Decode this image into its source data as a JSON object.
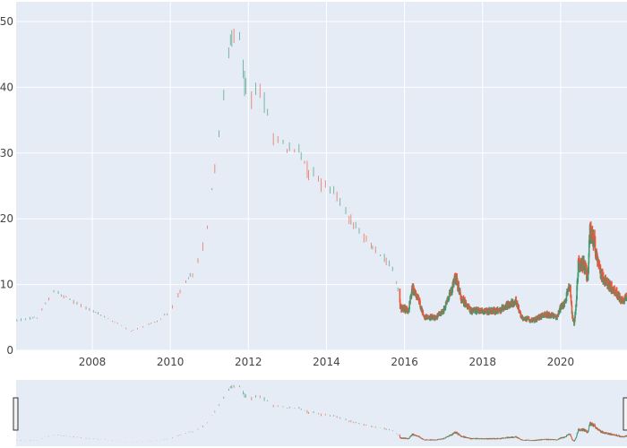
{
  "chart_data": {
    "type": "candlestick",
    "title": "",
    "xlabel": "",
    "ylabel": "",
    "xlim": [
      2006.05,
      2021.7
    ],
    "ylim": [
      0,
      53
    ],
    "x_ticks": [
      2008,
      2010,
      2012,
      2014,
      2016,
      2018,
      2020
    ],
    "x_tick_labels": [
      "2008",
      "2010",
      "2012",
      "2014",
      "2016",
      "2018",
      "2020"
    ],
    "y_ticks": [
      0,
      10,
      20,
      30,
      40,
      50
    ],
    "y_tick_labels": [
      "0",
      "10",
      "20",
      "30",
      "40",
      "50"
    ],
    "grid": true,
    "rangeslider": true,
    "colors": {
      "increasing": "#3d9970",
      "decreasing": "#ef553b",
      "plot_bg": "#e5ecf6",
      "grid": "#ffffff",
      "slider_bg": "#e5ecf6",
      "slider_mask": "#f5f5f5"
    },
    "trend": [
      [
        2006.05,
        4.5
      ],
      [
        2006.6,
        5.0
      ],
      [
        2007.0,
        9.0
      ],
      [
        2008.0,
        6.0
      ],
      [
        2009.0,
        3.0
      ],
      [
        2009.7,
        4.5
      ],
      [
        2010.0,
        6.0
      ],
      [
        2010.3,
        9.5
      ],
      [
        2010.6,
        12.0
      ],
      [
        2010.9,
        17.0
      ],
      [
        2011.1,
        26.0
      ],
      [
        2011.3,
        35.0
      ],
      [
        2011.5,
        45.0
      ],
      [
        2011.65,
        48.0
      ],
      [
        2011.8,
        47.0
      ],
      [
        2011.9,
        40.0
      ],
      [
        2012.1,
        38.0
      ],
      [
        2012.3,
        40.0
      ],
      [
        2012.6,
        33.0
      ],
      [
        2013.0,
        31.0
      ],
      [
        2013.3,
        30.0
      ],
      [
        2013.6,
        27.0
      ],
      [
        2014.0,
        25.0
      ],
      [
        2014.3,
        23.0
      ],
      [
        2014.6,
        20.0
      ],
      [
        2015.0,
        17.0
      ],
      [
        2015.4,
        14.5
      ],
      [
        2015.75,
        12.0
      ],
      [
        2015.9,
        6.5
      ],
      [
        2016.1,
        6.0
      ],
      [
        2016.2,
        9.5
      ],
      [
        2016.35,
        8.0
      ],
      [
        2016.5,
        5.0
      ],
      [
        2016.8,
        5.0
      ],
      [
        2017.0,
        6.0
      ],
      [
        2017.2,
        9.0
      ],
      [
        2017.3,
        11.5
      ],
      [
        2017.45,
        8.0
      ],
      [
        2017.7,
        6.0
      ],
      [
        2018.0,
        6.0
      ],
      [
        2018.4,
        6.0
      ],
      [
        2018.7,
        7.0
      ],
      [
        2018.85,
        7.5
      ],
      [
        2019.0,
        5.0
      ],
      [
        2019.3,
        4.5
      ],
      [
        2019.6,
        5.5
      ],
      [
        2019.9,
        5.0
      ],
      [
        2020.0,
        6.5
      ],
      [
        2020.1,
        7.0
      ],
      [
        2020.2,
        9.5
      ],
      [
        2020.25,
        9.0
      ],
      [
        2020.3,
        5.0
      ],
      [
        2020.35,
        4.0
      ],
      [
        2020.4,
        7.0
      ],
      [
        2020.45,
        13.0
      ],
      [
        2020.6,
        13.0
      ],
      [
        2020.7,
        11.0
      ],
      [
        2020.75,
        18.0
      ],
      [
        2020.85,
        17.0
      ],
      [
        2021.0,
        12.0
      ],
      [
        2021.2,
        10.0
      ],
      [
        2021.4,
        9.0
      ],
      [
        2021.55,
        7.5
      ],
      [
        2021.7,
        8.0
      ]
    ],
    "dense_start": 2015.85,
    "slider_range": [
      2006.05,
      2021.7
    ]
  }
}
